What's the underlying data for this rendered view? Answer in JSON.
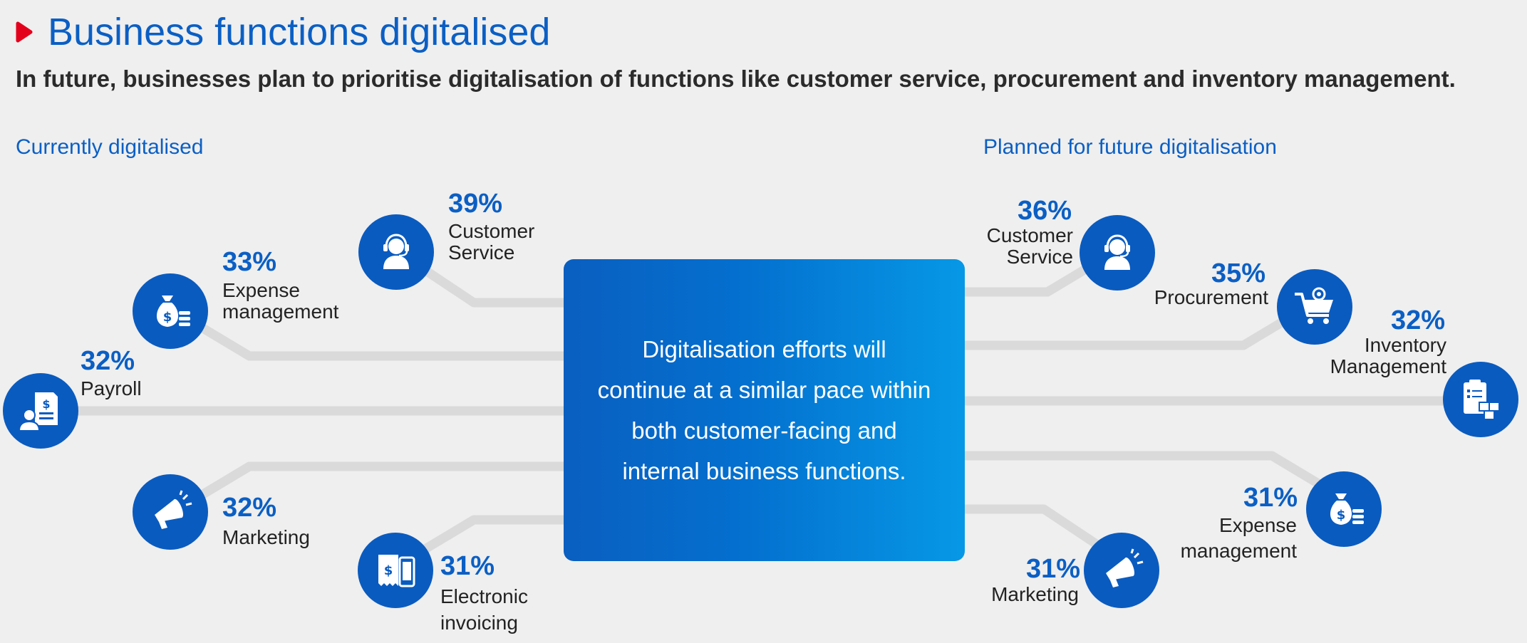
{
  "colors": {
    "accent": "#0b5fc4",
    "icon_bg": "#0a5bbf",
    "connector": "#dadada",
    "marker": "#e3001b",
    "background": "#efefef"
  },
  "header": {
    "title": "Business functions digitalised",
    "subtitle": "In future, businesses plan to prioritise digitalisation of functions like customer service, procurement and inventory management."
  },
  "center": {
    "lines": [
      "Digitalisation efforts will",
      "continue at a similar pace within",
      "both customer-facing and",
      "internal business functions."
    ]
  },
  "current": {
    "label": "Currently digitalised",
    "items": [
      {
        "pct": "39%",
        "line1": "Customer",
        "line2": "Service",
        "icon": "headset-icon",
        "value": 39
      },
      {
        "pct": "33%",
        "line1": "Expense",
        "line2": "management",
        "icon": "money-bag-icon",
        "value": 33
      },
      {
        "pct": "32%",
        "line1": "Payroll",
        "line2": "",
        "icon": "payroll-icon",
        "value": 32
      },
      {
        "pct": "32%",
        "line1": "Marketing",
        "line2": "",
        "icon": "megaphone-icon",
        "value": 32
      },
      {
        "pct": "31%",
        "line1": "Electronic",
        "line2": "invoicing",
        "icon": "invoice-icon",
        "value": 31
      }
    ]
  },
  "planned": {
    "label": "Planned for future digitalisation",
    "items": [
      {
        "pct": "36%",
        "line1": "Customer",
        "line2": "Service",
        "icon": "headset-icon",
        "value": 36
      },
      {
        "pct": "35%",
        "line1": "Procurement",
        "line2": "",
        "icon": "cart-icon",
        "value": 35
      },
      {
        "pct": "32%",
        "line1": "Inventory",
        "line2": "Management",
        "icon": "inventory-icon",
        "value": 32
      },
      {
        "pct": "31%",
        "line1": "Expense",
        "line2": "management",
        "icon": "money-bag-icon",
        "value": 31
      },
      {
        "pct": "31%",
        "line1": "Marketing",
        "line2": "",
        "icon": "megaphone-icon",
        "value": 31
      }
    ]
  }
}
